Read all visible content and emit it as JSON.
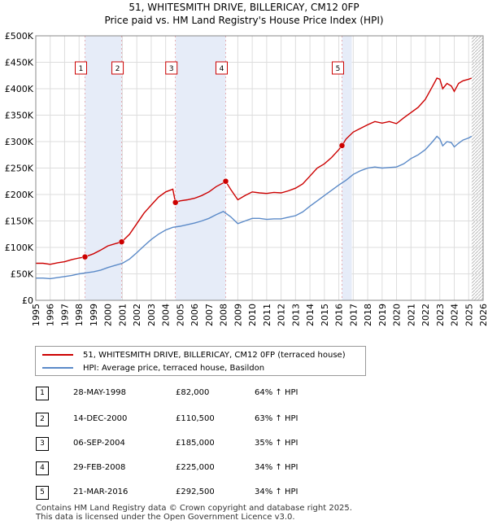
{
  "title_line1": "51, WHITESMITH DRIVE, BILLERICAY, CM12 0FP",
  "title_line2": "Price paid vs. HM Land Registry's House Price Index (HPI)",
  "legend": {
    "property_label": "51, WHITESMITH DRIVE, BILLERICAY, CM12 0FP (terraced house)",
    "hpi_label": "HPI: Average price, terraced house, Basildon"
  },
  "sales": [
    {
      "n": "1",
      "date": "28-MAY-1998",
      "price": "£82,000",
      "hpi": "64% ↑ HPI"
    },
    {
      "n": "2",
      "date": "14-DEC-2000",
      "price": "£110,500",
      "hpi": "63% ↑ HPI"
    },
    {
      "n": "3",
      "date": "06-SEP-2004",
      "price": "£185,000",
      "hpi": "35% ↑ HPI"
    },
    {
      "n": "4",
      "date": "29-FEB-2008",
      "price": "£225,000",
      "hpi": "34% ↑ HPI"
    },
    {
      "n": "5",
      "date": "21-MAR-2016",
      "price": "£292,500",
      "hpi": "34% ↑ HPI"
    }
  ],
  "footer_line1": "Contains HM Land Registry data © Crown copyright and database right 2025.",
  "footer_line2": "This data is licensed under the Open Government Licence v3.0.",
  "colors": {
    "property": "#cc0000",
    "hpi": "#5b8ac8",
    "shade": "#e6ecf8",
    "grid": "#dddddd"
  },
  "chart_data": {
    "type": "line",
    "xlim": [
      1995,
      2026
    ],
    "ylim": [
      0,
      500000
    ],
    "yticks": [
      0,
      50000,
      100000,
      150000,
      200000,
      250000,
      300000,
      350000,
      400000,
      450000,
      500000
    ],
    "ytick_labels": [
      "£0",
      "£50K",
      "£100K",
      "£150K",
      "£200K",
      "£250K",
      "£300K",
      "£350K",
      "£400K",
      "£450K",
      "£500K"
    ],
    "xticks": [
      1995,
      1996,
      1997,
      1998,
      1999,
      2000,
      2001,
      2002,
      2003,
      2004,
      2005,
      2006,
      2007,
      2008,
      2009,
      2010,
      2011,
      2012,
      2013,
      2014,
      2015,
      2016,
      2017,
      2018,
      2019,
      2020,
      2021,
      2022,
      2023,
      2024,
      2025,
      2026
    ],
    "sale_points": [
      {
        "n": "1",
        "x": 1998.41,
        "y": 82000
      },
      {
        "n": "2",
        "x": 2000.95,
        "y": 110500
      },
      {
        "n": "3",
        "x": 2004.68,
        "y": 185000
      },
      {
        "n": "4",
        "x": 2008.16,
        "y": 225000
      },
      {
        "n": "5",
        "x": 2016.22,
        "y": 292500
      }
    ],
    "shaded_periods": [
      [
        1998.41,
        2000.95
      ],
      [
        2004.68,
        2008.16
      ],
      [
        2016.22,
        2016.9
      ]
    ],
    "future_hatch_from": 2025.2,
    "series": [
      {
        "name": "51, WHITESMITH DRIVE, BILLERICAY, CM12 0FP (terraced house)",
        "x": [
          1995,
          1995.5,
          1996,
          1996.5,
          1997,
          1997.5,
          1998,
          1998.41,
          1999,
          1999.5,
          2000,
          2000.5,
          2000.95,
          2001.5,
          2002,
          2002.5,
          2003,
          2003.5,
          2004,
          2004.5,
          2004.68,
          2005,
          2005.5,
          2006,
          2006.5,
          2007,
          2007.5,
          2008,
          2008.16,
          2008.5,
          2009,
          2009.5,
          2010,
          2010.5,
          2011,
          2011.5,
          2012,
          2012.5,
          2013,
          2013.5,
          2014,
          2014.5,
          2015,
          2015.5,
          2016,
          2016.22,
          2016.5,
          2017,
          2017.5,
          2018,
          2018.5,
          2019,
          2019.5,
          2020,
          2020.5,
          2021,
          2021.5,
          2022,
          2022.5,
          2022.8,
          2023,
          2023.2,
          2023.5,
          2023.8,
          2024,
          2024.3,
          2024.6,
          2025,
          2025.2
        ],
        "values": [
          70000,
          70000,
          68000,
          71000,
          73000,
          77000,
          80000,
          82000,
          88000,
          95000,
          103000,
          107000,
          110500,
          125000,
          145000,
          165000,
          180000,
          195000,
          205000,
          210000,
          185000,
          188000,
          190000,
          193000,
          198000,
          205000,
          215000,
          222000,
          225000,
          210000,
          190000,
          198000,
          205000,
          203000,
          202000,
          204000,
          203000,
          207000,
          212000,
          220000,
          235000,
          250000,
          258000,
          270000,
          285000,
          292500,
          305000,
          318000,
          325000,
          332000,
          338000,
          335000,
          338000,
          334000,
          345000,
          355000,
          365000,
          380000,
          405000,
          420000,
          418000,
          400000,
          410000,
          405000,
          395000,
          410000,
          415000,
          418000,
          420000
        ]
      },
      {
        "name": "HPI: Average price, terraced house, Basildon",
        "x": [
          1995,
          1995.5,
          1996,
          1996.5,
          1997,
          1997.5,
          1998,
          1998.5,
          1999,
          1999.5,
          2000,
          2000.5,
          2001,
          2001.5,
          2002,
          2002.5,
          2003,
          2003.5,
          2004,
          2004.5,
          2005,
          2005.5,
          2006,
          2006.5,
          2007,
          2007.5,
          2008,
          2008.5,
          2009,
          2009.5,
          2010,
          2010.5,
          2011,
          2011.5,
          2012,
          2012.5,
          2013,
          2013.5,
          2014,
          2014.5,
          2015,
          2015.5,
          2016,
          2016.5,
          2017,
          2017.5,
          2018,
          2018.5,
          2019,
          2019.5,
          2020,
          2020.5,
          2021,
          2021.5,
          2022,
          2022.5,
          2022.8,
          2023,
          2023.2,
          2023.5,
          2023.8,
          2024,
          2024.3,
          2024.6,
          2025,
          2025.2
        ],
        "values": [
          42000,
          42000,
          41000,
          43000,
          45000,
          47000,
          50000,
          52000,
          54000,
          57000,
          62000,
          66000,
          70000,
          78000,
          90000,
          103000,
          115000,
          125000,
          133000,
          138000,
          140000,
          143000,
          146000,
          150000,
          155000,
          162000,
          168000,
          158000,
          145000,
          150000,
          155000,
          155000,
          153000,
          154000,
          154000,
          157000,
          160000,
          167000,
          178000,
          188000,
          198000,
          208000,
          218000,
          227000,
          238000,
          245000,
          250000,
          252000,
          250000,
          251000,
          252000,
          258000,
          268000,
          275000,
          285000,
          300000,
          310000,
          305000,
          292000,
          300000,
          298000,
          290000,
          297000,
          303000,
          307000,
          310000
        ]
      }
    ]
  }
}
